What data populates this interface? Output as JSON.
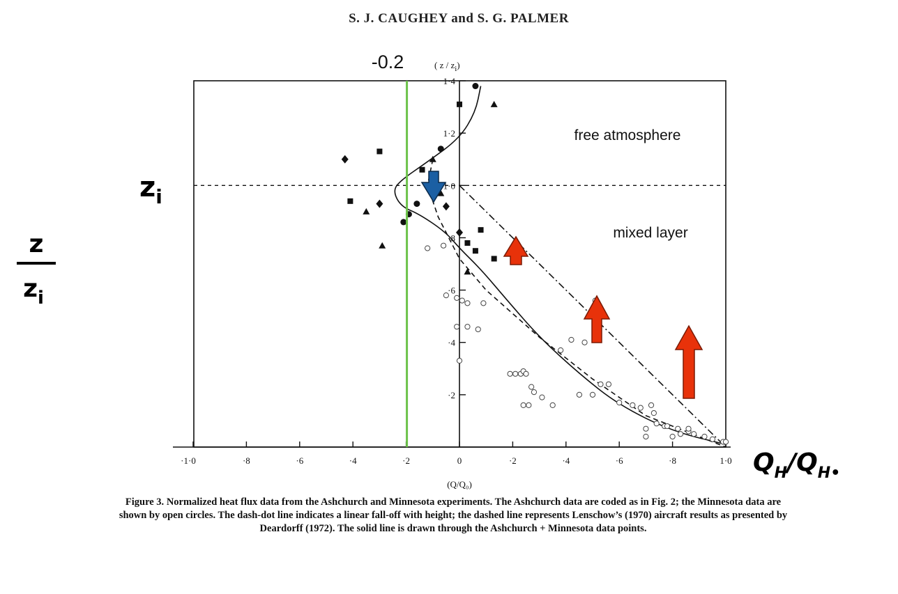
{
  "header": {
    "authors": "S. J. CAUGHEY and S. G. PALMER"
  },
  "chart_data": {
    "type": "scatter",
    "xlabel": "(Q/Q₀)",
    "ylabel": "(z/zᵢ)",
    "xlim": [
      -1.0,
      1.0
    ],
    "ylim": [
      0,
      1.4
    ],
    "x_tick_labels": [
      "·1·0",
      "·8",
      "·6",
      "·4",
      "·2",
      "0",
      "·2",
      "·4",
      "·6",
      "·8",
      "1·0"
    ],
    "x_tick_values": [
      -1.0,
      -0.8,
      -0.6,
      -0.4,
      -0.2,
      0,
      0.2,
      0.4,
      0.6,
      0.8,
      1.0
    ],
    "y_tick_labels": [
      "·2",
      "·4",
      "·6",
      "·8",
      "1·0",
      "1·2",
      "1·4"
    ],
    "y_tick_values": [
      0.2,
      0.4,
      0.6,
      0.8,
      1.0,
      1.2,
      1.4
    ],
    "series": [
      {
        "marker": "circle-filled",
        "points": [
          [
            0.06,
            1.38
          ],
          [
            -0.07,
            1.14
          ],
          [
            -0.16,
            0.93
          ],
          [
            -0.19,
            0.89
          ],
          [
            -0.21,
            0.86
          ]
        ]
      },
      {
        "marker": "square-filled",
        "points": [
          [
            -0.3,
            1.13
          ],
          [
            -0.14,
            1.06
          ],
          [
            0.0,
            1.31
          ],
          [
            -0.41,
            0.94
          ],
          [
            0.08,
            0.83
          ],
          [
            0.03,
            0.78
          ],
          [
            0.06,
            0.75
          ],
          [
            0.13,
            0.72
          ]
        ]
      },
      {
        "marker": "triangle-filled",
        "points": [
          [
            0.13,
            1.31
          ],
          [
            -0.1,
            1.1
          ],
          [
            -0.35,
            0.9
          ],
          [
            -0.29,
            0.77
          ],
          [
            0.03,
            0.67
          ],
          [
            -0.07,
            0.97
          ]
        ]
      },
      {
        "marker": "diamond-filled",
        "points": [
          [
            -0.43,
            1.1
          ],
          [
            -0.3,
            0.93
          ],
          [
            -0.05,
            0.92
          ],
          [
            0.0,
            0.82
          ]
        ]
      },
      {
        "marker": "circle-open",
        "points": [
          [
            -0.12,
            0.76
          ],
          [
            -0.06,
            0.77
          ],
          [
            -0.05,
            0.58
          ],
          [
            -0.01,
            0.57
          ],
          [
            0.01,
            0.56
          ],
          [
            0.03,
            0.55
          ],
          [
            0.09,
            0.55
          ],
          [
            -0.01,
            0.46
          ],
          [
            0.03,
            0.46
          ],
          [
            0.07,
            0.45
          ],
          [
            0.0,
            0.33
          ],
          [
            0.19,
            0.28
          ],
          [
            0.21,
            0.28
          ],
          [
            0.23,
            0.28
          ],
          [
            0.24,
            0.29
          ],
          [
            0.25,
            0.28
          ],
          [
            0.27,
            0.23
          ],
          [
            0.28,
            0.21
          ],
          [
            0.31,
            0.19
          ],
          [
            0.24,
            0.16
          ],
          [
            0.26,
            0.16
          ],
          [
            0.35,
            0.16
          ],
          [
            0.45,
            0.2
          ],
          [
            0.5,
            0.2
          ],
          [
            0.53,
            0.24
          ],
          [
            0.56,
            0.24
          ],
          [
            0.6,
            0.17
          ],
          [
            0.65,
            0.16
          ],
          [
            0.68,
            0.15
          ],
          [
            0.72,
            0.16
          ],
          [
            0.73,
            0.13
          ],
          [
            0.74,
            0.09
          ],
          [
            0.7,
            0.07
          ],
          [
            0.7,
            0.04
          ],
          [
            0.77,
            0.08
          ],
          [
            0.78,
            0.08
          ],
          [
            0.82,
            0.07
          ],
          [
            0.86,
            0.06
          ],
          [
            0.88,
            0.05
          ],
          [
            0.92,
            0.04
          ],
          [
            0.95,
            0.03
          ],
          [
            0.99,
            0.02
          ],
          [
            1.0,
            0.02
          ],
          [
            0.8,
            0.04
          ],
          [
            0.83,
            0.05
          ],
          [
            0.86,
            0.07
          ],
          [
            0.38,
            0.37
          ],
          [
            0.42,
            0.41
          ],
          [
            0.47,
            0.4
          ],
          [
            0.51,
            0.56
          ]
        ]
      }
    ],
    "lines": [
      {
        "style": "dash-dot",
        "points": [
          [
            0.0,
            1.0
          ],
          [
            1.0,
            0.0
          ]
        ]
      },
      {
        "style": "dashed",
        "points": [
          [
            -0.1,
            1.1
          ],
          [
            -0.12,
            1.0
          ],
          [
            -0.08,
            0.88
          ],
          [
            0.0,
            0.72
          ],
          [
            0.1,
            0.6
          ],
          [
            0.3,
            0.42
          ],
          [
            0.5,
            0.26
          ],
          [
            0.7,
            0.12
          ],
          [
            1.0,
            0.0
          ]
        ]
      },
      {
        "style": "solid",
        "points": [
          [
            0.08,
            1.38
          ],
          [
            0.06,
            1.28
          ],
          [
            0.0,
            1.18
          ],
          [
            -0.12,
            1.09
          ],
          [
            -0.22,
            1.02
          ],
          [
            -0.25,
            0.98
          ],
          [
            -0.22,
            0.92
          ],
          [
            -0.15,
            0.89
          ],
          [
            -0.05,
            0.82
          ],
          [
            0.0,
            0.76
          ],
          [
            0.08,
            0.68
          ],
          [
            0.18,
            0.56
          ],
          [
            0.3,
            0.42
          ],
          [
            0.45,
            0.28
          ],
          [
            0.6,
            0.16
          ],
          [
            0.8,
            0.06
          ],
          [
            1.0,
            0.01
          ]
        ]
      }
    ],
    "reference_lines": {
      "horizontal_dashed_y": 1.0,
      "vertical_green_x": -0.2
    }
  },
  "annotations": {
    "green_line_label": "-0.2",
    "zi_label": "z",
    "zi_subscript": "i",
    "y_handwritten_num": "z",
    "y_handwritten_den": "z",
    "y_handwritten_den_sub": "i",
    "x_handwritten": "Q",
    "x_handwritten_sub1": "H",
    "x_handwritten_slash": "/Q",
    "x_handwritten_sub2": "H•",
    "free_atmosphere": "free atmosphere",
    "mixed_layer": "mixed layer",
    "top_axis_label": "( z / z",
    "top_axis_sub": "i",
    "top_axis_close": ")",
    "colors": {
      "green": "#6cc24a",
      "red": "#e8320a",
      "blue": "#1b5fa3"
    }
  },
  "caption": {
    "figure_label": "Figure 3.",
    "text": "Normalized heat flux data from the Ashchurch and Minnesota experiments. The Ashchurch data are coded as in Fig. 2; the Minnesota data are shown by open circles. The dash-dot line indicates a linear fall-off with height; the dashed line represents Lenschow’s (1970) aircraft results as presented by Deardorff (1972). The solid line is drawn through the Ashchurch + Minnesota data points."
  }
}
